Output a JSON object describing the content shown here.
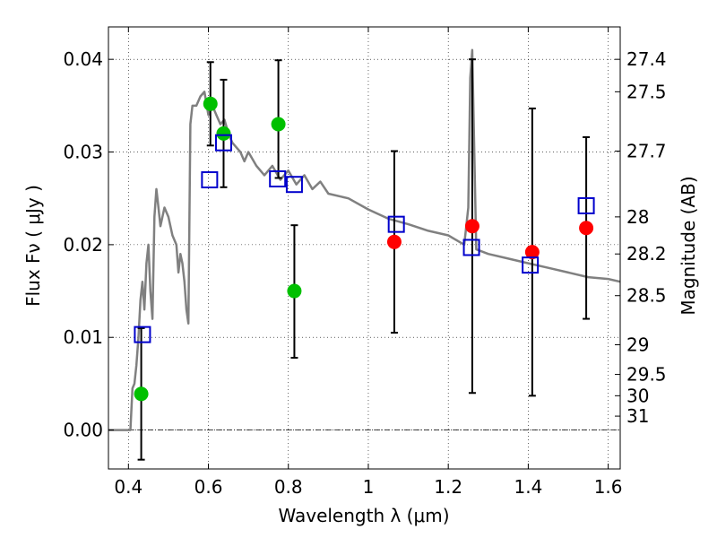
{
  "chart_data": {
    "type": "scatter",
    "title": "",
    "xlabel": "Wavelength  λ (μm)",
    "ylabel": "Flux  Fν  ( μJy )",
    "y2label": "Magnitude (AB)",
    "xlim": [
      0.35,
      1.63
    ],
    "ylim": [
      -0.0042,
      0.0435
    ],
    "x_ticks": [
      0.4,
      0.6,
      0.8,
      1.0,
      1.2,
      1.4,
      1.6
    ],
    "x_tick_labels": [
      "0.4",
      "0.6",
      "0.8",
      "1",
      "1.2",
      "1.4",
      "1.6"
    ],
    "y_ticks": [
      0.0,
      0.01,
      0.02,
      0.03,
      0.04
    ],
    "y_tick_labels": [
      "0.00",
      "0.01",
      "0.02",
      "0.03",
      "0.04"
    ],
    "magnitude_ticks": [
      {
        "label": "27.4",
        "flux": 0.04
      },
      {
        "label": "27.5",
        "flux": 0.0365
      },
      {
        "label": "27.7",
        "flux": 0.0301
      },
      {
        "label": "28",
        "flux": 0.023
      },
      {
        "label": "28.2",
        "flux": 0.019
      },
      {
        "label": "28.5",
        "flux": 0.0145
      },
      {
        "label": "29",
        "flux": 0.0092
      },
      {
        "label": "29.5",
        "flux": 0.006
      },
      {
        "label": "30",
        "flux": 0.0037
      },
      {
        "label": "31",
        "flux": 0.0015
      }
    ],
    "grid": true,
    "zero_line": true,
    "series": [
      {
        "kind": "line",
        "color": "#808080",
        "x": [
          0.35,
          0.405,
          0.41,
          0.415,
          0.42,
          0.425,
          0.43,
          0.435,
          0.44,
          0.445,
          0.45,
          0.455,
          0.46,
          0.465,
          0.47,
          0.475,
          0.48,
          0.49,
          0.5,
          0.51,
          0.52,
          0.525,
          0.53,
          0.535,
          0.54,
          0.545,
          0.55,
          0.555,
          0.56,
          0.57,
          0.58,
          0.59,
          0.6,
          0.61,
          0.62,
          0.63,
          0.64,
          0.65,
          0.66,
          0.67,
          0.68,
          0.69,
          0.7,
          0.72,
          0.74,
          0.76,
          0.78,
          0.8,
          0.82,
          0.84,
          0.86,
          0.88,
          0.9,
          0.95,
          1.0,
          1.05,
          1.1,
          1.15,
          1.2,
          1.24,
          1.25,
          1.255,
          1.26,
          1.265,
          1.27,
          1.3,
          1.35,
          1.4,
          1.45,
          1.5,
          1.55,
          1.6,
          1.63
        ],
        "y": [
          0.0,
          0.0,
          0.0045,
          0.005,
          0.007,
          0.01,
          0.014,
          0.016,
          0.013,
          0.018,
          0.02,
          0.015,
          0.012,
          0.023,
          0.026,
          0.024,
          0.022,
          0.024,
          0.023,
          0.021,
          0.02,
          0.017,
          0.019,
          0.018,
          0.016,
          0.013,
          0.0115,
          0.033,
          0.035,
          0.035,
          0.036,
          0.0365,
          0.034,
          0.035,
          0.034,
          0.033,
          0.0335,
          0.032,
          0.031,
          0.0305,
          0.03,
          0.029,
          0.03,
          0.0285,
          0.0275,
          0.0285,
          0.027,
          0.028,
          0.0265,
          0.0275,
          0.026,
          0.0268,
          0.0255,
          0.025,
          0.0238,
          0.0228,
          0.0222,
          0.0215,
          0.021,
          0.02,
          0.024,
          0.038,
          0.041,
          0.03,
          0.0195,
          0.019,
          0.0185,
          0.018,
          0.0175,
          0.017,
          0.0165,
          0.0163,
          0.016
        ]
      },
      {
        "kind": "points",
        "marker": "circle",
        "color": "#00c000",
        "x": [
          0.432,
          0.605,
          0.638,
          0.775,
          0.815
        ],
        "y": [
          0.0039,
          0.0352,
          0.032,
          0.033,
          0.015
        ],
        "err_low": [
          0.0071,
          0.0045,
          0.0058,
          0.0058,
          0.0072
        ],
        "err_high": [
          0.0071,
          0.0045,
          0.0058,
          0.0069,
          0.0071
        ]
      },
      {
        "kind": "points",
        "marker": "circle",
        "color": "#ff0000",
        "x": [
          1.065,
          1.26,
          1.41,
          1.545
        ],
        "y": [
          0.0203,
          0.022,
          0.0192,
          0.0218
        ],
        "err_low": [
          0.0098,
          0.018,
          0.0155,
          0.0098
        ],
        "err_high": [
          0.0098,
          0.018,
          0.0155,
          0.0098
        ]
      },
      {
        "kind": "points",
        "marker": "open-square",
        "color": "#0000cc",
        "x": [
          0.435,
          0.603,
          0.638,
          0.773,
          0.815,
          1.07,
          1.258,
          1.405,
          1.545
        ],
        "y": [
          0.0103,
          0.027,
          0.031,
          0.0271,
          0.0265,
          0.0222,
          0.0197,
          0.0178,
          0.0242
        ]
      }
    ]
  }
}
